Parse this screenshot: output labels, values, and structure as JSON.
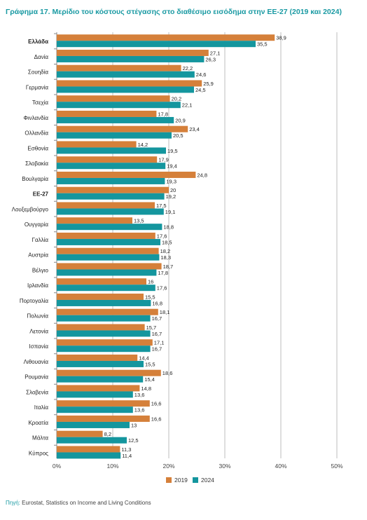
{
  "title": {
    "prefix": "Γράφημα 17.",
    "text": "Μερίδιο του κόστους στέγασης στο διαθέσιμο εισόδημα στην ΕΕ-27 (2019 και 2024)"
  },
  "source": {
    "prefix": "Πηγή:",
    "text": "Eurostat, Statistics on Income and Living Conditions"
  },
  "colors": {
    "s2019": "#d5803a",
    "s2024": "#14969e",
    "grid": "#bdbdbd",
    "axis": "#888888"
  },
  "chart_data": {
    "type": "bar",
    "orientation": "horizontal",
    "categories": [
      "Ελλάδα",
      "Δανία",
      "Σουηδία",
      "Γερμανία",
      "Τσεχία",
      "Φινλανδία",
      "Ολλανδία",
      "Εσθονία",
      "Σλοβακία",
      "Βουλγαρία",
      "ΕΕ-27",
      "Λουξεμβούργο",
      "Ουγγαρία",
      "Γαλλία",
      "Αυστρία",
      "Βέλγιο",
      "Ιρλανδία",
      "Πορτογαλία",
      "Πολωνία",
      "Λετονία",
      "Ισπανία",
      "Λιθουανία",
      "Ρουμανία",
      "Σλοβενία",
      "Ιταλία",
      "Κροατία",
      "Μάλτα",
      "Κύπρος"
    ],
    "bold_categories": [
      "Ελλάδα",
      "ΕΕ-27"
    ],
    "series": [
      {
        "name": "2019",
        "values": [
          38.9,
          27.1,
          22.2,
          25.9,
          20.2,
          17.8,
          23.4,
          14.2,
          17.9,
          24.8,
          20,
          17.5,
          13.5,
          17.6,
          18.2,
          18.7,
          16,
          15.5,
          18.1,
          15.7,
          17.1,
          14.4,
          18.6,
          14.8,
          16.6,
          16.6,
          8.2,
          11.3
        ],
        "labels": [
          "38,9",
          "27,1",
          "22,2",
          "25,9",
          "20,2",
          "17,8",
          "23,4",
          "14,2",
          "17,9",
          "24,8",
          "20",
          "17,5",
          "13,5",
          "17,6",
          "18,2",
          "18,7",
          "16",
          "15,5",
          "18,1",
          "15,7",
          "17,1",
          "14,4",
          "18,6",
          "14,8",
          "16,6",
          "16,6",
          "8,2",
          "11,3"
        ]
      },
      {
        "name": "2024",
        "values": [
          35.5,
          26.3,
          24.6,
          24.5,
          22.1,
          20.9,
          20.5,
          19.5,
          19.4,
          19.3,
          19.2,
          19.1,
          18.8,
          18.5,
          18.3,
          17.8,
          17.6,
          16.8,
          16.7,
          16.7,
          16.7,
          15.5,
          15.4,
          13.6,
          13.6,
          13,
          12.5,
          11.4
        ],
        "labels": [
          "35,5",
          "26,3",
          "24,6",
          "24,5",
          "22,1",
          "20,9",
          "20,5",
          "19,5",
          "19,4",
          "19,3",
          "19,2",
          "19,1",
          "18,8",
          "18,5",
          "18,3",
          "17,8",
          "17,6",
          "16,8",
          "16,7",
          "16,7",
          "16,7",
          "15,5",
          "15,4",
          "13,6",
          "13,6",
          "13",
          "12,5",
          "11,4"
        ]
      }
    ],
    "xlim": [
      0,
      50
    ],
    "ticks": [
      "0%",
      "10%",
      "20%",
      "30%",
      "40%",
      "50%"
    ],
    "tick_values": [
      0,
      10,
      20,
      30,
      40,
      50
    ],
    "grid": true,
    "legend_placement": "bottom-center"
  }
}
